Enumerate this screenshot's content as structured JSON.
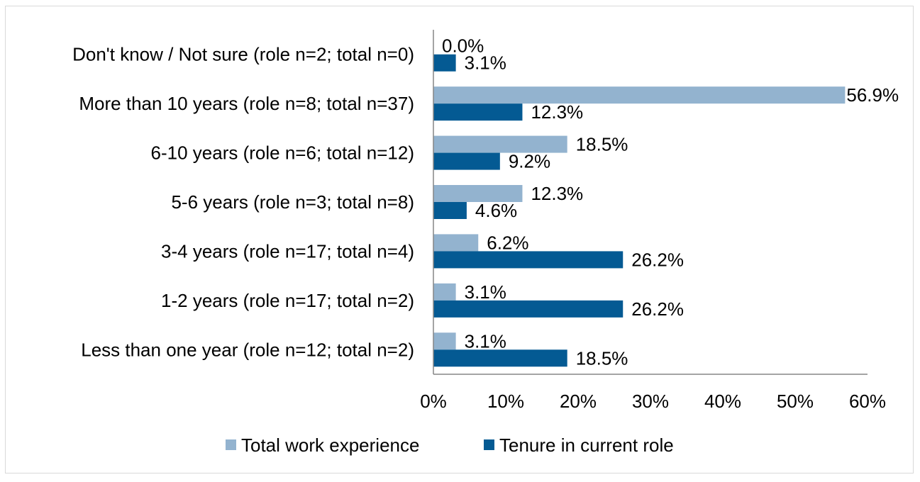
{
  "chart_data": {
    "type": "bar",
    "orientation": "horizontal",
    "categories": [
      "Don't know / Not sure (role n=2; total n=0)",
      "More than 10 years (role n=8; total n=37)",
      "6-10 years (role n=6; total n=12)",
      "5-6 years (role n=3; total n=8)",
      "3-4 years (role n=17; total n=4)",
      "1-2 years (role n=17; total n=2)",
      "Less than one year (role n=12; total n=2)"
    ],
    "series": [
      {
        "name": "Total work experience",
        "color": "#93b3cf",
        "values": [
          0.0,
          56.9,
          18.5,
          12.3,
          6.2,
          3.1,
          3.1
        ],
        "labels": [
          "0.0%",
          "56.9%",
          "18.5%",
          "12.3%",
          "6.2%",
          "3.1%",
          "3.1%"
        ]
      },
      {
        "name": "Tenure in current role",
        "color": "#045a93",
        "values": [
          3.1,
          12.3,
          9.2,
          4.6,
          26.2,
          26.2,
          18.5
        ],
        "labels": [
          "3.1%",
          "12.3%",
          "9.2%",
          "4.6%",
          "26.2%",
          "26.2%",
          "18.5%"
        ]
      }
    ],
    "xlim": [
      0,
      60
    ],
    "xticks": [
      "0%",
      "10%",
      "20%",
      "30%",
      "40%",
      "50%",
      "60%"
    ],
    "legend_position": "bottom",
    "grid": false
  }
}
